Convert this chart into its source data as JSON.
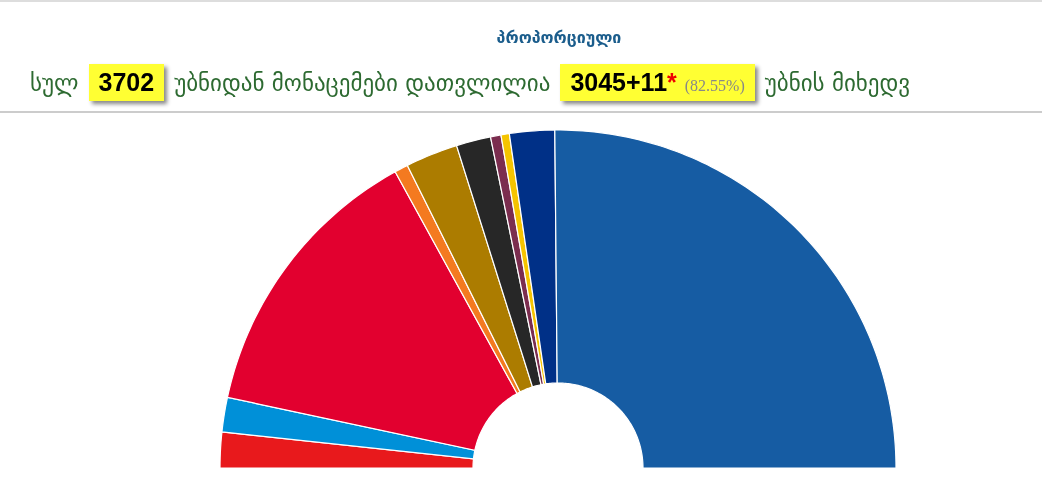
{
  "chart_data": {
    "type": "donut",
    "title": "პროპორციული",
    "annotations": [
      "სულ",
      "3702",
      "უბნიდან მონაცემები დათვლილია",
      "3045+11",
      "*",
      "(82.55%)",
      "უბნის მიხედვ"
    ],
    "categories": [
      null,
      null,
      null,
      null,
      null,
      null,
      null,
      null,
      null,
      null
    ],
    "values": [
      3.4,
      3.3,
      27.3,
      1.3,
      5.0,
      3.3,
      1.0,
      0.8,
      4.3,
      50.3
    ],
    "colors": [
      "#e8191c",
      "#0090d8",
      "#e2002f",
      "#f47a20",
      "#ac7c00",
      "#272727",
      "#7b2d4f",
      "#f5c400",
      "#003087",
      "#165ca3"
    ]
  }
}
